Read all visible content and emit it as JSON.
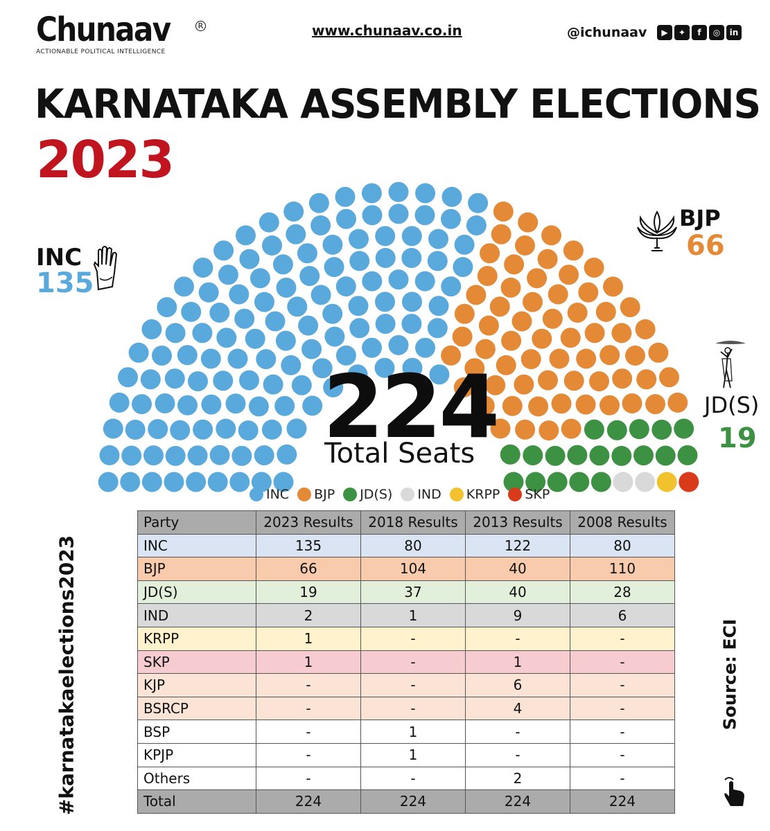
{
  "brand": {
    "name": "Chunaav",
    "registered": "R",
    "tagline": "ACTIONABLE POLITICAL INTELLIGENCE",
    "website": "www.chunaav.co.in",
    "handle": "@ichunaav",
    "social_icons": [
      "youtube-icon",
      "twitter-icon",
      "facebook-icon",
      "instagram-icon",
      "linkedin-icon"
    ]
  },
  "title": "KARNATAKA ASSEMBLY ELECTIONS",
  "year": "2023",
  "hashtag": "#karnatakaelections2023",
  "source": "Source: ECI",
  "callouts": {
    "inc": {
      "name": "INC",
      "count": "135",
      "icon": "hand-symbol-icon"
    },
    "bjp": {
      "name": "BJP",
      "count": "66",
      "icon": "lotus-symbol-icon"
    },
    "jds": {
      "name": "JD(S)",
      "count": "19",
      "icon": "farmer-symbol-icon"
    }
  },
  "total": {
    "value": "224",
    "label": "Total Seats"
  },
  "chart_data": [
    {
      "type": "parliament",
      "total_seats": 224,
      "series": [
        {
          "name": "INC",
          "values": [
            135
          ],
          "color": "#5aa9dc"
        },
        {
          "name": "BJP",
          "values": [
            66
          ],
          "color": "#e48a36"
        },
        {
          "name": "JD(S)",
          "values": [
            19
          ],
          "color": "#3d9142"
        },
        {
          "name": "IND",
          "values": [
            2
          ],
          "color": "#d9d9d9"
        },
        {
          "name": "KRPP",
          "values": [
            1
          ],
          "color": "#f2c12e"
        },
        {
          "name": "SKP",
          "values": [
            1
          ],
          "color": "#d93b1a"
        }
      ],
      "legend": "bottom"
    },
    {
      "type": "table",
      "columns": [
        "Party",
        "2023 Results",
        "2018 Results",
        "2013 Results",
        "2008 Results"
      ],
      "rows": [
        {
          "party": "INC",
          "values": [
            "135",
            "80",
            "122",
            "80"
          ],
          "bg": "#dae4f3"
        },
        {
          "party": "BJP",
          "values": [
            "66",
            "104",
            "40",
            "110"
          ],
          "bg": "#f8cbad"
        },
        {
          "party": "JD(S)",
          "values": [
            "19",
            "37",
            "40",
            "28"
          ],
          "bg": "#e2efda"
        },
        {
          "party": "IND",
          "values": [
            "2",
            "1",
            "9",
            "6"
          ],
          "bg": "#d9d9d9"
        },
        {
          "party": "KRPP",
          "values": [
            "1",
            "-",
            "-",
            "-"
          ],
          "bg": "#fff2cc"
        },
        {
          "party": "SKP",
          "values": [
            "1",
            "-",
            "1",
            "-"
          ],
          "bg": "#f6ccd0"
        },
        {
          "party": "KJP",
          "values": [
            "-",
            "-",
            "6",
            "-"
          ],
          "bg": "#fbe3d6"
        },
        {
          "party": "BSRCP",
          "values": [
            "-",
            "-",
            "4",
            "-"
          ],
          "bg": "#fbe3d6"
        },
        {
          "party": "BSP",
          "values": [
            "-",
            "1",
            "-",
            "-"
          ],
          "bg": "#ffffff"
        },
        {
          "party": "KPJP",
          "values": [
            "-",
            "1",
            "-",
            "-"
          ],
          "bg": "#ffffff"
        },
        {
          "party": "Others",
          "values": [
            "-",
            "-",
            "2",
            "-"
          ],
          "bg": "#ffffff"
        }
      ],
      "total_row": {
        "party": "Total",
        "values": [
          "224",
          "224",
          "224",
          "224"
        ]
      }
    }
  ]
}
